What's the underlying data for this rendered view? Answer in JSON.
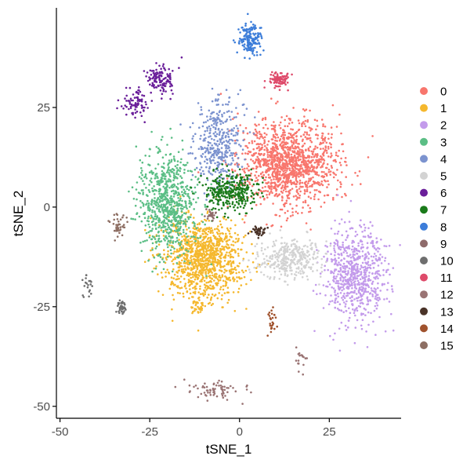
{
  "chart_data": {
    "type": "scatter",
    "title": "",
    "xlabel": "tSNE_1",
    "ylabel": "tSNE_2",
    "xlim": [
      -51,
      45
    ],
    "ylim": [
      -53,
      50
    ],
    "xticks": [
      -50,
      -25,
      0,
      25
    ],
    "yticks": [
      -50,
      -25,
      0,
      25
    ],
    "grid": false,
    "legend_position": "right",
    "series": [
      {
        "name": "0",
        "color": "#F8766D",
        "clusters": [
          {
            "cx": 14,
            "cy": 11,
            "sx": 6.5,
            "sy": 5.5,
            "n": 1300
          }
        ]
      },
      {
        "name": "1",
        "color": "#F5B82E",
        "clusters": [
          {
            "cx": -10,
            "cy": -13,
            "sx": 5.5,
            "sy": 5.0,
            "n": 1100
          },
          {
            "cx": -11,
            "cy": -25,
            "sx": 1.0,
            "sy": 0.8,
            "n": 25
          }
        ]
      },
      {
        "name": "2",
        "color": "#C39BEB",
        "clusters": [
          {
            "cx": 32,
            "cy": -17,
            "sx": 4.5,
            "sy": 6.0,
            "n": 700
          }
        ]
      },
      {
        "name": "3",
        "color": "#5BBE85",
        "clusters": [
          {
            "cx": -20,
            "cy": 1,
            "sx": 4.0,
            "sy": 6.5,
            "n": 750
          }
        ]
      },
      {
        "name": "4",
        "color": "#7C93CF",
        "clusters": [
          {
            "cx": -6,
            "cy": 16,
            "sx": 3.5,
            "sy": 5.5,
            "n": 380
          }
        ]
      },
      {
        "name": "5",
        "color": "#D3D3D3",
        "clusters": [
          {
            "cx": 14,
            "cy": -13,
            "sx": 4.5,
            "sy": 2.5,
            "n": 350
          }
        ]
      },
      {
        "name": "6",
        "color": "#6A1F9A",
        "clusters": [
          {
            "cx": -22,
            "cy": 32,
            "sx": 1.8,
            "sy": 1.8,
            "n": 130
          },
          {
            "cx": -29,
            "cy": 26,
            "sx": 2.0,
            "sy": 2.0,
            "n": 80
          }
        ]
      },
      {
        "name": "7",
        "color": "#1A7A1A",
        "clusters": [
          {
            "cx": -2,
            "cy": 4,
            "sx": 3.5,
            "sy": 2.5,
            "n": 320
          }
        ]
      },
      {
        "name": "8",
        "color": "#3C7DD9",
        "clusters": [
          {
            "cx": 3,
            "cy": 42,
            "sx": 1.5,
            "sy": 2.0,
            "n": 160
          }
        ]
      },
      {
        "name": "9",
        "color": "#8E6A6A",
        "clusters": [
          {
            "cx": -8,
            "cy": -2,
            "sx": 0.8,
            "sy": 0.7,
            "n": 25
          }
        ]
      },
      {
        "name": "10",
        "color": "#6E6E6E",
        "clusters": [
          {
            "cx": -33,
            "cy": -25,
            "sx": 0.8,
            "sy": 1.0,
            "n": 45
          },
          {
            "cx": -42,
            "cy": -20,
            "sx": 0.8,
            "sy": 2.0,
            "n": 20
          }
        ]
      },
      {
        "name": "11",
        "color": "#DE4A6A",
        "clusters": [
          {
            "cx": 11,
            "cy": 32,
            "sx": 1.3,
            "sy": 0.9,
            "n": 100
          }
        ]
      },
      {
        "name": "12",
        "color": "#9A7474",
        "clusters": [
          {
            "cx": -6,
            "cy": -46,
            "sx": 4.0,
            "sy": 1.2,
            "n": 70
          },
          {
            "cx": 17,
            "cy": -38,
            "sx": 0.8,
            "sy": 1.5,
            "n": 20
          }
        ]
      },
      {
        "name": "13",
        "color": "#4A3328",
        "clusters": [
          {
            "cx": 5,
            "cy": -6,
            "sx": 1.2,
            "sy": 0.8,
            "n": 40
          }
        ]
      },
      {
        "name": "14",
        "color": "#A0522D",
        "clusters": [
          {
            "cx": 9,
            "cy": -29,
            "sx": 0.8,
            "sy": 2.0,
            "n": 25
          }
        ]
      },
      {
        "name": "15",
        "color": "#8D6E63",
        "clusters": [
          {
            "cx": -34,
            "cy": -5,
            "sx": 1.3,
            "sy": 1.5,
            "n": 40
          }
        ]
      }
    ]
  }
}
